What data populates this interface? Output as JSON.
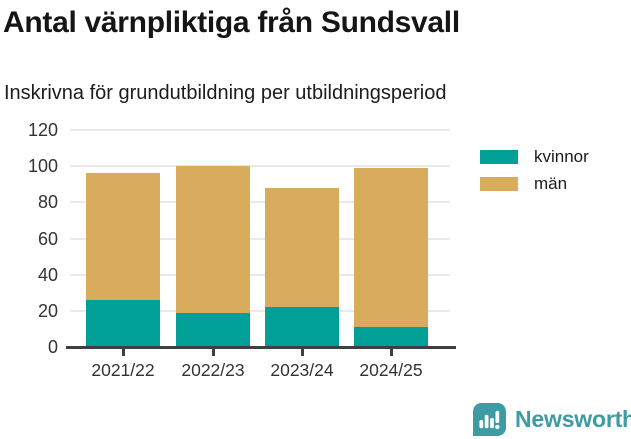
{
  "header": {
    "title": "Antal värnpliktiga från Sundsvall",
    "subtitle": "Inskrivna för grundutbildning per utbildningsperiod"
  },
  "chart_data": {
    "type": "bar",
    "stacked": true,
    "title": "Antal värnpliktiga från Sundsvall",
    "subtitle": "Inskrivna för grundutbildning per utbildningsperiod",
    "categories": [
      "2021/22",
      "2022/23",
      "2023/24",
      "2024/25"
    ],
    "series": [
      {
        "name": "kvinnor",
        "color": "#00a096",
        "values": [
          26,
          19,
          22,
          11
        ]
      },
      {
        "name": "män",
        "color": "#d9ab5c",
        "values": [
          70,
          81,
          66,
          88
        ]
      }
    ],
    "totals": [
      96,
      100,
      88,
      99
    ],
    "xlabel": "",
    "ylabel": "",
    "ylim": [
      0,
      120
    ],
    "yticks": [
      0,
      20,
      40,
      60,
      80,
      100,
      120
    ],
    "grid": true,
    "legend_position": "right"
  },
  "footer": {
    "brand": "Newsworthy",
    "brand_color": "#3d9ca3"
  }
}
